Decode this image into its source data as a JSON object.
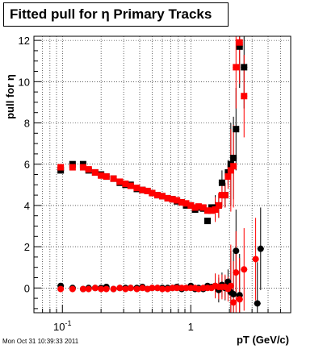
{
  "title": "Fitted pull for η  Primary Tracks",
  "timestamp": "Mon Oct 31 10:39:33 2011",
  "chart_data": {
    "type": "scatter",
    "title": "Fitted pull for η  Primary Tracks",
    "xlabel": "pT (GeV/c)",
    "ylabel": "pull for η",
    "xscale": "log",
    "xlim": [
      0.06,
      6.0
    ],
    "ylim": [
      -1.2,
      12.2
    ],
    "grid": true,
    "legend": "none",
    "x_tick_labels": [
      {
        "value": 0.1,
        "label": "10",
        "exponent": "-1"
      },
      {
        "value": 1,
        "label": "1",
        "exponent": ""
      }
    ],
    "y_ticks": [
      0,
      2,
      4,
      6,
      8,
      10,
      12
    ],
    "colors": {
      "black": "#000000",
      "red": "#ff0000"
    },
    "series": [
      {
        "marker": "square",
        "color": "#000000",
        "points": [
          [
            0.097,
            5.7
          ],
          [
            0.12,
            6.0
          ],
          [
            0.145,
            6.0
          ],
          [
            0.16,
            5.7
          ],
          [
            0.18,
            5.6
          ],
          [
            0.2,
            5.5
          ],
          [
            0.22,
            5.4
          ],
          [
            0.25,
            5.3
          ],
          [
            0.28,
            5.1
          ],
          [
            0.31,
            5.0
          ],
          [
            0.34,
            5.0
          ],
          [
            0.38,
            4.8
          ],
          [
            0.42,
            4.75
          ],
          [
            0.46,
            4.7
          ],
          [
            0.5,
            4.6
          ],
          [
            0.55,
            4.5
          ],
          [
            0.6,
            4.45
          ],
          [
            0.66,
            4.35
          ],
          [
            0.72,
            4.3
          ],
          [
            0.78,
            4.2
          ],
          [
            0.85,
            4.15
          ],
          [
            0.92,
            4.0
          ],
          [
            1.0,
            4.0
          ],
          [
            1.08,
            3.8
          ],
          [
            1.15,
            3.9
          ],
          [
            1.25,
            3.85
          ],
          [
            1.35,
            3.25
          ],
          [
            1.45,
            3.9
          ],
          [
            1.55,
            3.9
          ],
          [
            1.65,
            4.0
          ],
          [
            1.75,
            5.1
          ],
          [
            1.85,
            4.5
          ],
          [
            1.95,
            5.6
          ],
          [
            2.05,
            6.0
          ],
          [
            2.15,
            6.3
          ],
          [
            2.25,
            7.7
          ],
          [
            2.4,
            11.7
          ],
          [
            2.6,
            10.7
          ]
        ]
      },
      {
        "marker": "square",
        "color": "#ff0000",
        "points": [
          [
            0.097,
            5.85
          ],
          [
            0.12,
            5.85
          ],
          [
            0.145,
            5.85
          ],
          [
            0.16,
            5.75
          ],
          [
            0.18,
            5.6
          ],
          [
            0.2,
            5.45
          ],
          [
            0.22,
            5.4
          ],
          [
            0.25,
            5.3
          ],
          [
            0.28,
            5.15
          ],
          [
            0.31,
            5.05
          ],
          [
            0.34,
            4.95
          ],
          [
            0.38,
            4.85
          ],
          [
            0.42,
            4.75
          ],
          [
            0.46,
            4.7
          ],
          [
            0.5,
            4.6
          ],
          [
            0.55,
            4.5
          ],
          [
            0.6,
            4.45
          ],
          [
            0.66,
            4.35
          ],
          [
            0.72,
            4.3
          ],
          [
            0.78,
            4.25
          ],
          [
            0.85,
            4.15
          ],
          [
            0.92,
            4.1
          ],
          [
            1.0,
            4.0
          ],
          [
            1.08,
            3.9
          ],
          [
            1.15,
            3.95
          ],
          [
            1.25,
            3.9
          ],
          [
            1.35,
            3.75
          ],
          [
            1.45,
            3.75
          ],
          [
            1.55,
            3.8
          ],
          [
            1.65,
            4.0
          ],
          [
            1.75,
            4.5
          ],
          [
            1.85,
            4.5
          ],
          [
            1.95,
            5.4
          ],
          [
            2.05,
            5.7
          ],
          [
            2.15,
            5.9
          ],
          [
            2.25,
            10.7
          ],
          [
            2.4,
            11.9
          ],
          [
            2.6,
            9.3
          ]
        ]
      },
      {
        "marker": "circle",
        "color": "#000000",
        "points": [
          [
            0.097,
            0.1
          ],
          [
            0.12,
            0.0
          ],
          [
            0.145,
            -0.05
          ],
          [
            0.16,
            0.0
          ],
          [
            0.18,
            0.0
          ],
          [
            0.2,
            0.0
          ],
          [
            0.22,
            0.05
          ],
          [
            0.25,
            -0.05
          ],
          [
            0.28,
            0.0
          ],
          [
            0.31,
            0.0
          ],
          [
            0.34,
            0.0
          ],
          [
            0.38,
            0.0
          ],
          [
            0.42,
            0.05
          ],
          [
            0.46,
            -0.05
          ],
          [
            0.5,
            0.0
          ],
          [
            0.55,
            0.0
          ],
          [
            0.6,
            0.0
          ],
          [
            0.66,
            0.0
          ],
          [
            0.72,
            0.0
          ],
          [
            0.78,
            0.05
          ],
          [
            0.85,
            -0.05
          ],
          [
            0.92,
            0.0
          ],
          [
            1.0,
            0.1
          ],
          [
            1.08,
            -0.05
          ],
          [
            1.15,
            0.0
          ],
          [
            1.25,
            -0.05
          ],
          [
            1.35,
            0.1
          ],
          [
            1.45,
            0.05
          ],
          [
            1.55,
            0.1
          ],
          [
            1.65,
            -0.1
          ],
          [
            1.75,
            0.15
          ],
          [
            1.85,
            0.0
          ],
          [
            1.95,
            0.3
          ],
          [
            2.05,
            -0.2
          ],
          [
            2.15,
            -0.3
          ],
          [
            2.25,
            1.8
          ],
          [
            2.4,
            -0.35
          ],
          [
            3.3,
            -0.75
          ],
          [
            3.5,
            1.9
          ]
        ]
      },
      {
        "marker": "circle",
        "color": "#ff0000",
        "points": [
          [
            0.097,
            -0.05
          ],
          [
            0.12,
            -0.05
          ],
          [
            0.145,
            -0.05
          ],
          [
            0.16,
            -0.05
          ],
          [
            0.18,
            0.0
          ],
          [
            0.2,
            -0.05
          ],
          [
            0.22,
            -0.05
          ],
          [
            0.25,
            -0.05
          ],
          [
            0.28,
            0.0
          ],
          [
            0.31,
            -0.05
          ],
          [
            0.34,
            0.0
          ],
          [
            0.38,
            -0.05
          ],
          [
            0.42,
            0.0
          ],
          [
            0.46,
            -0.05
          ],
          [
            0.5,
            0.0
          ],
          [
            0.55,
            0.0
          ],
          [
            0.6,
            -0.05
          ],
          [
            0.66,
            -0.05
          ],
          [
            0.72,
            0.0
          ],
          [
            0.78,
            0.0
          ],
          [
            0.85,
            0.0
          ],
          [
            0.92,
            0.0
          ],
          [
            1.0,
            0.0
          ],
          [
            1.08,
            0.0
          ],
          [
            1.15,
            -0.05
          ],
          [
            1.25,
            0.0
          ],
          [
            1.35,
            0.0
          ],
          [
            1.45,
            0.0
          ],
          [
            1.55,
            0.1
          ],
          [
            1.65,
            0.05
          ],
          [
            1.75,
            0.05
          ],
          [
            1.85,
            0.05
          ],
          [
            1.95,
            -0.05
          ],
          [
            2.05,
            0.1
          ],
          [
            2.15,
            -0.7
          ],
          [
            2.25,
            0.75
          ],
          [
            2.4,
            -0.55
          ],
          [
            2.6,
            0.9
          ],
          [
            3.2,
            1.4
          ]
        ]
      }
    ]
  }
}
